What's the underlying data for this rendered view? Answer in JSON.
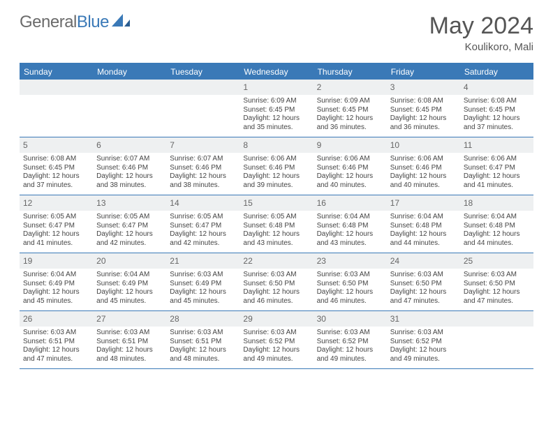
{
  "logo": {
    "word1": "General",
    "word2": "Blue"
  },
  "title": "May 2024",
  "location": "Koulikoro, Mali",
  "colors": {
    "accent": "#3a79b7",
    "header_bg": "#eef0f1",
    "text": "#444444",
    "title_text": "#555555"
  },
  "day_headers": [
    "Sunday",
    "Monday",
    "Tuesday",
    "Wednesday",
    "Thursday",
    "Friday",
    "Saturday"
  ],
  "weeks": [
    [
      null,
      null,
      null,
      {
        "n": "1",
        "sr": "6:09 AM",
        "ss": "6:45 PM",
        "dl": "12 hours and 35 minutes."
      },
      {
        "n": "2",
        "sr": "6:09 AM",
        "ss": "6:45 PM",
        "dl": "12 hours and 36 minutes."
      },
      {
        "n": "3",
        "sr": "6:08 AM",
        "ss": "6:45 PM",
        "dl": "12 hours and 36 minutes."
      },
      {
        "n": "4",
        "sr": "6:08 AM",
        "ss": "6:45 PM",
        "dl": "12 hours and 37 minutes."
      }
    ],
    [
      {
        "n": "5",
        "sr": "6:08 AM",
        "ss": "6:45 PM",
        "dl": "12 hours and 37 minutes."
      },
      {
        "n": "6",
        "sr": "6:07 AM",
        "ss": "6:46 PM",
        "dl": "12 hours and 38 minutes."
      },
      {
        "n": "7",
        "sr": "6:07 AM",
        "ss": "6:46 PM",
        "dl": "12 hours and 38 minutes."
      },
      {
        "n": "8",
        "sr": "6:06 AM",
        "ss": "6:46 PM",
        "dl": "12 hours and 39 minutes."
      },
      {
        "n": "9",
        "sr": "6:06 AM",
        "ss": "6:46 PM",
        "dl": "12 hours and 40 minutes."
      },
      {
        "n": "10",
        "sr": "6:06 AM",
        "ss": "6:46 PM",
        "dl": "12 hours and 40 minutes."
      },
      {
        "n": "11",
        "sr": "6:06 AM",
        "ss": "6:47 PM",
        "dl": "12 hours and 41 minutes."
      }
    ],
    [
      {
        "n": "12",
        "sr": "6:05 AM",
        "ss": "6:47 PM",
        "dl": "12 hours and 41 minutes."
      },
      {
        "n": "13",
        "sr": "6:05 AM",
        "ss": "6:47 PM",
        "dl": "12 hours and 42 minutes."
      },
      {
        "n": "14",
        "sr": "6:05 AM",
        "ss": "6:47 PM",
        "dl": "12 hours and 42 minutes."
      },
      {
        "n": "15",
        "sr": "6:05 AM",
        "ss": "6:48 PM",
        "dl": "12 hours and 43 minutes."
      },
      {
        "n": "16",
        "sr": "6:04 AM",
        "ss": "6:48 PM",
        "dl": "12 hours and 43 minutes."
      },
      {
        "n": "17",
        "sr": "6:04 AM",
        "ss": "6:48 PM",
        "dl": "12 hours and 44 minutes."
      },
      {
        "n": "18",
        "sr": "6:04 AM",
        "ss": "6:48 PM",
        "dl": "12 hours and 44 minutes."
      }
    ],
    [
      {
        "n": "19",
        "sr": "6:04 AM",
        "ss": "6:49 PM",
        "dl": "12 hours and 45 minutes."
      },
      {
        "n": "20",
        "sr": "6:04 AM",
        "ss": "6:49 PM",
        "dl": "12 hours and 45 minutes."
      },
      {
        "n": "21",
        "sr": "6:03 AM",
        "ss": "6:49 PM",
        "dl": "12 hours and 45 minutes."
      },
      {
        "n": "22",
        "sr": "6:03 AM",
        "ss": "6:50 PM",
        "dl": "12 hours and 46 minutes."
      },
      {
        "n": "23",
        "sr": "6:03 AM",
        "ss": "6:50 PM",
        "dl": "12 hours and 46 minutes."
      },
      {
        "n": "24",
        "sr": "6:03 AM",
        "ss": "6:50 PM",
        "dl": "12 hours and 47 minutes."
      },
      {
        "n": "25",
        "sr": "6:03 AM",
        "ss": "6:50 PM",
        "dl": "12 hours and 47 minutes."
      }
    ],
    [
      {
        "n": "26",
        "sr": "6:03 AM",
        "ss": "6:51 PM",
        "dl": "12 hours and 47 minutes."
      },
      {
        "n": "27",
        "sr": "6:03 AM",
        "ss": "6:51 PM",
        "dl": "12 hours and 48 minutes."
      },
      {
        "n": "28",
        "sr": "6:03 AM",
        "ss": "6:51 PM",
        "dl": "12 hours and 48 minutes."
      },
      {
        "n": "29",
        "sr": "6:03 AM",
        "ss": "6:52 PM",
        "dl": "12 hours and 49 minutes."
      },
      {
        "n": "30",
        "sr": "6:03 AM",
        "ss": "6:52 PM",
        "dl": "12 hours and 49 minutes."
      },
      {
        "n": "31",
        "sr": "6:03 AM",
        "ss": "6:52 PM",
        "dl": "12 hours and 49 minutes."
      },
      null
    ]
  ],
  "labels": {
    "sunrise": "Sunrise:",
    "sunset": "Sunset:",
    "daylight": "Daylight:"
  }
}
